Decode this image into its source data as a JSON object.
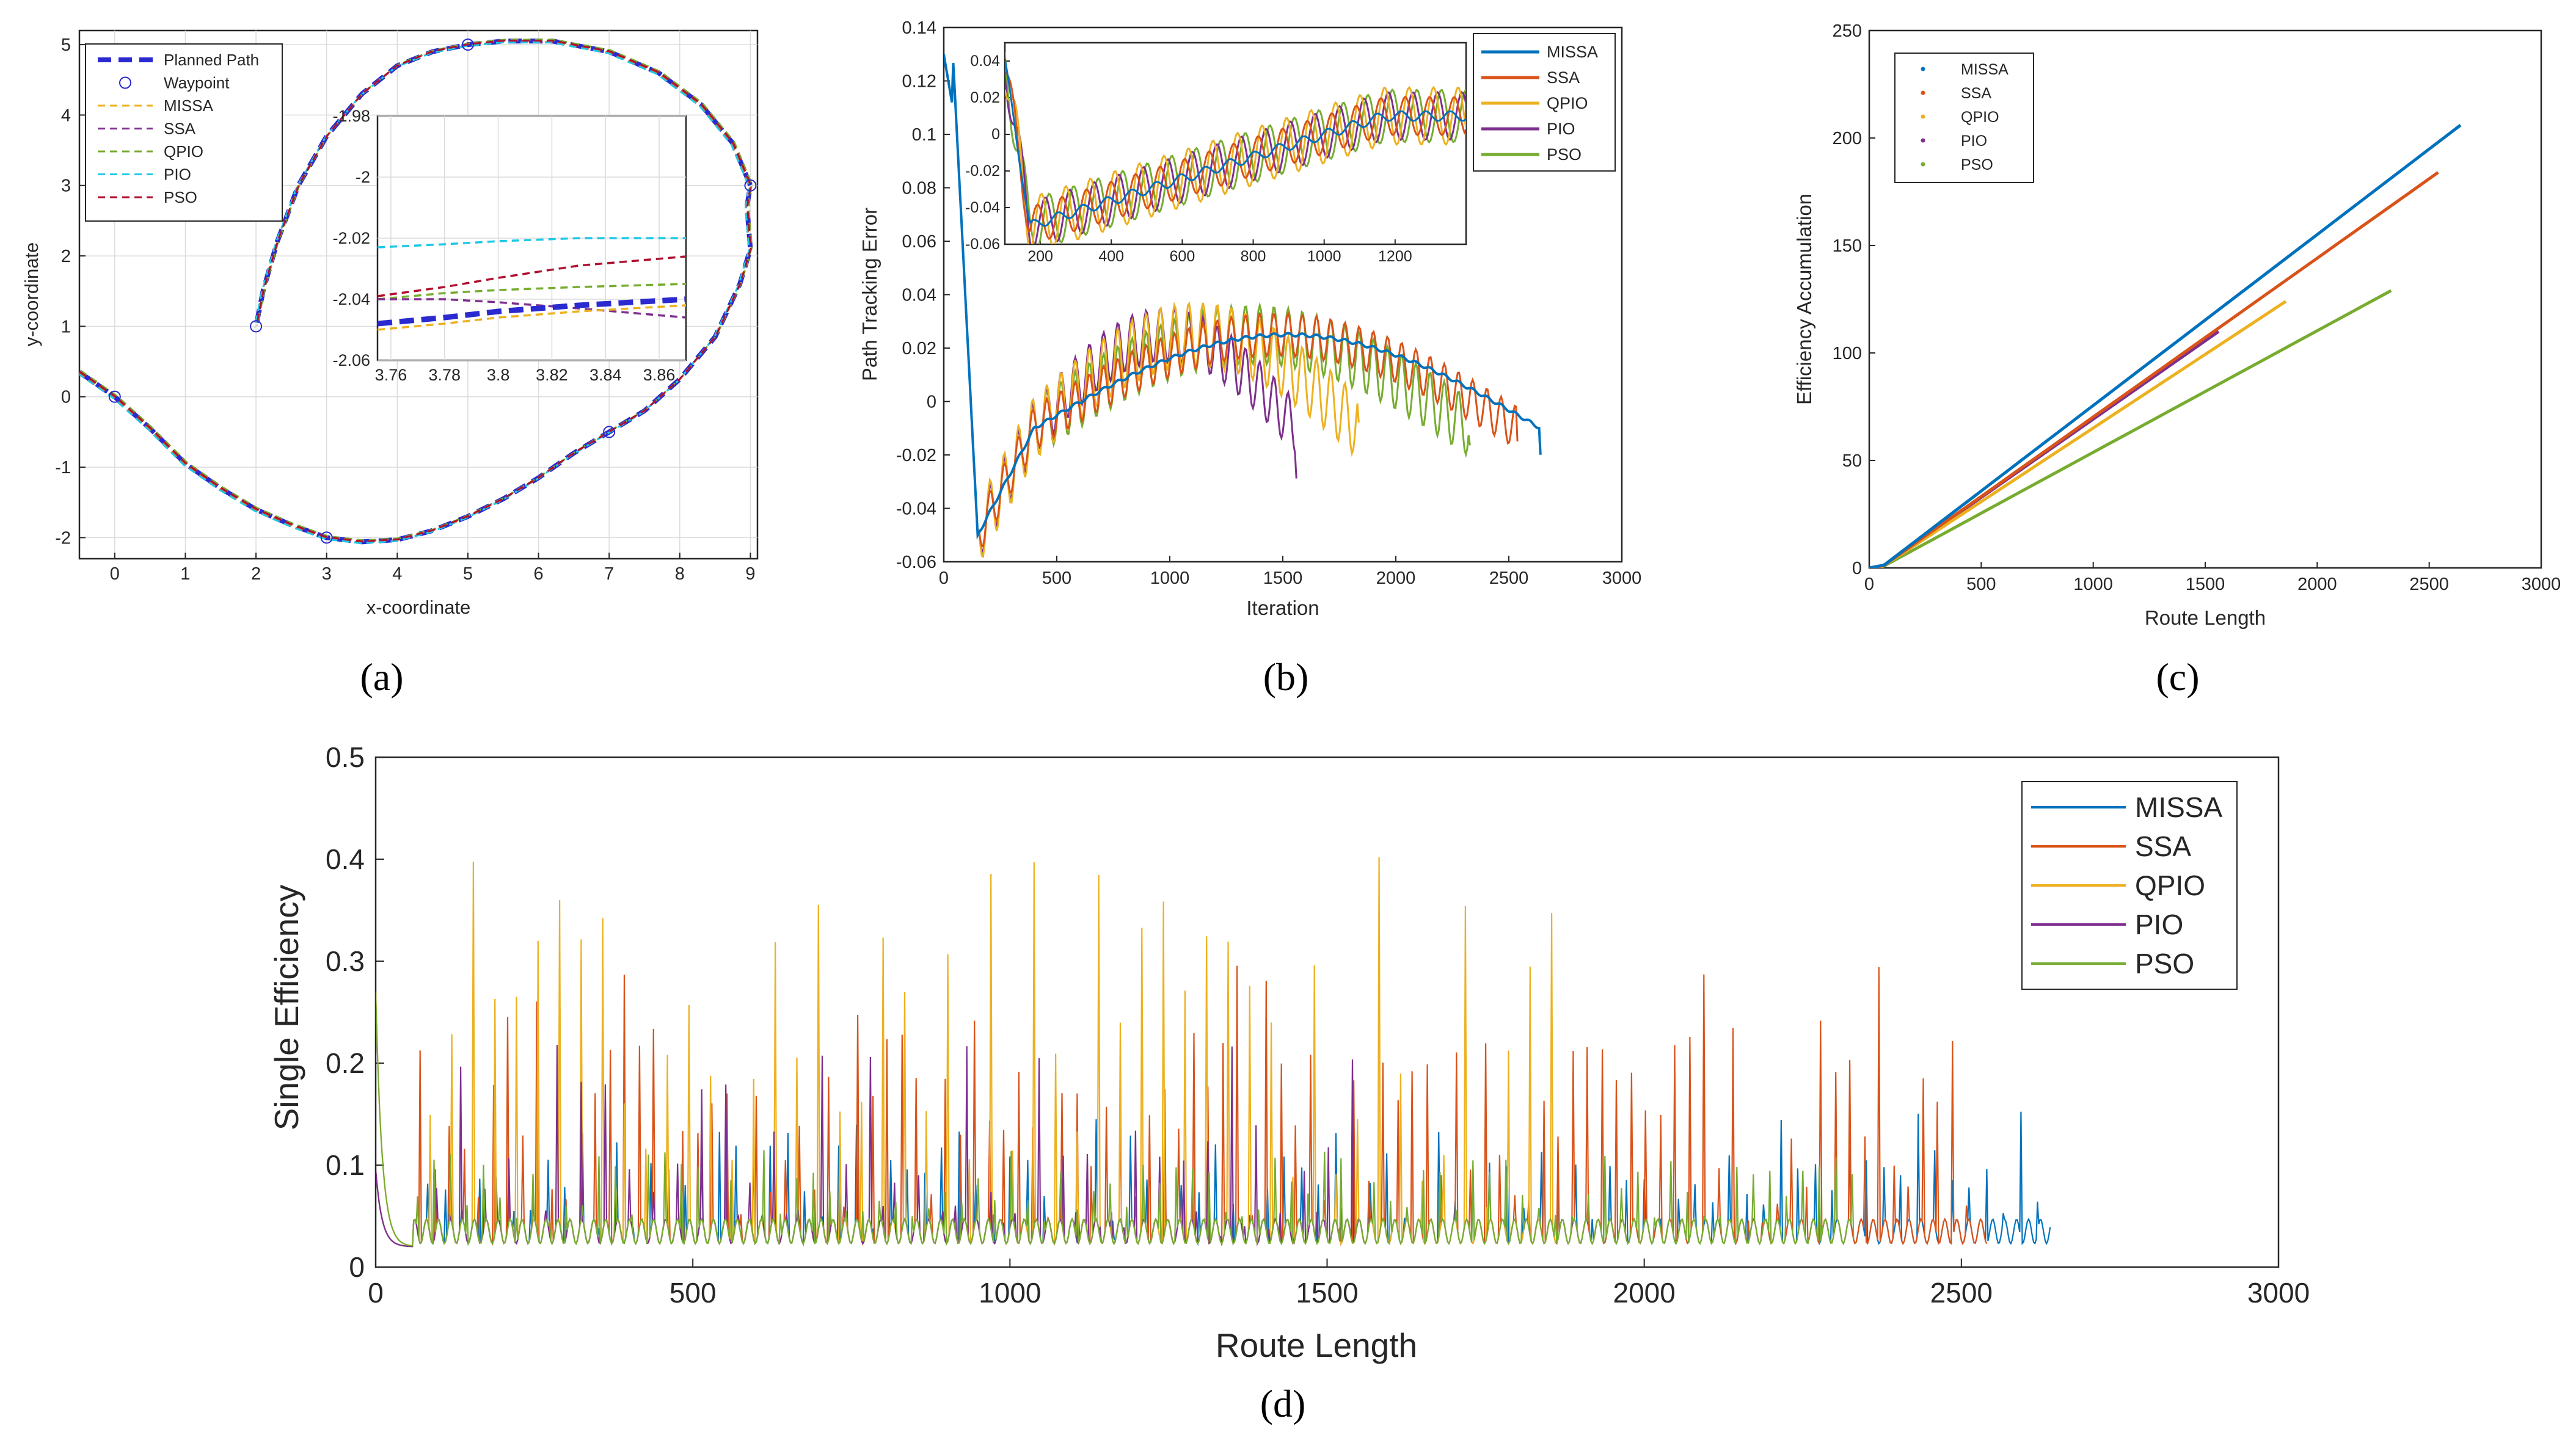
{
  "colors": {
    "MISSA": "#0072BD",
    "SSA": "#D95319",
    "QPIO": "#EDB120",
    "PIO": "#7E2F8E",
    "PSO": "#77AC30",
    "Waypoint": "#2a2ad0",
    "PIO_a": "#1ec8e6",
    "PSO_a": "#b01030"
  },
  "chart_data": [
    {
      "id": "a",
      "type": "line",
      "panel_label": "(a)",
      "xlabel": "x-coordinate",
      "ylabel": "y-coordinate",
      "xlim": [
        -0.5,
        9.1
      ],
      "ylim": [
        -2.3,
        5.2
      ],
      "xticks": [
        "0",
        "1",
        "2",
        "3",
        "4",
        "5",
        "6",
        "7",
        "8",
        "9"
      ],
      "yticks": [
        "-2",
        "-1",
        "0",
        "1",
        "2",
        "3",
        "4",
        "5"
      ],
      "grid": true,
      "legend": [
        "Planned Path",
        "Waypoint",
        "MISSA",
        "SSA",
        "QPIO",
        "PIO",
        "PSO"
      ],
      "legend_position": "top-left",
      "waypoints": [
        [
          0,
          0
        ],
        [
          2,
          1
        ],
        [
          3,
          -2
        ],
        [
          5,
          5
        ],
        [
          7,
          -0.5
        ],
        [
          9,
          3
        ]
      ],
      "inset": {
        "xlim": [
          3.755,
          3.87
        ],
        "ylim": [
          -2.06,
          -1.98
        ],
        "xticks": [
          "3.76",
          "3.78",
          "3.8",
          "3.82",
          "3.84",
          "3.86"
        ],
        "yticks": [
          "-2.06",
          "-2.04",
          "-2.02",
          "-2",
          "-1.98"
        ],
        "series": [
          {
            "name": "PIO",
            "y": [
              -2.023,
              -2.022,
              -2.021,
              -2.02,
              -2.02
            ]
          },
          {
            "name": "PSO",
            "y": [
              -2.039,
              -2.036,
              -2.033,
              -2.029,
              -2.026
            ]
          },
          {
            "name": "QPIO",
            "y": [
              -2.04,
              -2.038,
              -2.037,
              -2.036,
              -2.035
            ]
          },
          {
            "name": "SSA",
            "y": [
              -2.04,
              -2.04,
              -2.041,
              -2.043,
              -2.046
            ]
          },
          {
            "name": "Planned Path",
            "y": [
              -2.048,
              -2.046,
              -2.044,
              -2.042,
              -2.04
            ]
          },
          {
            "name": "MISSA",
            "y": [
              -2.05,
              -2.048,
              -2.046,
              -2.044,
              -2.042
            ]
          }
        ],
        "x": [
          3.755,
          3.78,
          3.8,
          3.83,
          3.87
        ]
      }
    },
    {
      "id": "b",
      "type": "line",
      "panel_label": "(b)",
      "xlabel": "Iteration",
      "ylabel": "Path Tracking Error",
      "xlim": [
        0,
        3000
      ],
      "ylim": [
        -0.06,
        0.14
      ],
      "xticks": [
        "0",
        "500",
        "1000",
        "1500",
        "2000",
        "2500",
        "3000"
      ],
      "yticks": [
        "-0.06",
        "-0.04",
        "-0.02",
        "0",
        "0.02",
        "0.04",
        "0.06",
        "0.08",
        "0.1",
        "0.12",
        "0.14"
      ],
      "legend": [
        "MISSA",
        "SSA",
        "QPIO",
        "PIO",
        "PSO"
      ],
      "legend_position": "top-right",
      "series": [
        {
          "name": "MISSA",
          "end": 2640
        },
        {
          "name": "SSA",
          "end": 2540
        },
        {
          "name": "QPIO",
          "end": 1840
        },
        {
          "name": "PIO",
          "end": 1560
        },
        {
          "name": "PSO",
          "end": 2330
        }
      ],
      "inset": {
        "xlim": [
          100,
          1400
        ],
        "ylim": [
          -0.06,
          0.05
        ],
        "xticks": [
          "200",
          "400",
          "600",
          "800",
          "1000",
          "1200"
        ],
        "yticks": [
          "-0.06",
          "-0.04",
          "-0.02",
          "0",
          "0.02",
          "0.04"
        ]
      }
    },
    {
      "id": "c",
      "type": "scatter",
      "panel_label": "(c)",
      "xlabel": "Route Length",
      "ylabel": "Efficiency Accumulation",
      "xlim": [
        0,
        3000
      ],
      "ylim": [
        0,
        250
      ],
      "xticks": [
        "0",
        "500",
        "1000",
        "1500",
        "2000",
        "2500",
        "3000"
      ],
      "yticks": [
        "0",
        "50",
        "100",
        "150",
        "200",
        "250"
      ],
      "legend": [
        "MISSA",
        "SSA",
        "QPIO",
        "PIO",
        "PSO"
      ],
      "legend_position": "top-left",
      "series": [
        {
          "name": "MISSA",
          "x_end": 2640,
          "y_end": 206
        },
        {
          "name": "SSA",
          "x_end": 2540,
          "y_end": 184
        },
        {
          "name": "QPIO",
          "x_end": 1860,
          "y_end": 124
        },
        {
          "name": "PIO",
          "x_end": 1560,
          "y_end": 110
        },
        {
          "name": "PSO",
          "x_end": 2330,
          "y_end": 129
        }
      ]
    },
    {
      "id": "d",
      "type": "line",
      "panel_label": "(d)",
      "xlabel": "Route Length",
      "ylabel": "Single Efficiency",
      "xlim": [
        0,
        3000
      ],
      "ylim": [
        0,
        0.5
      ],
      "xticks": [
        "0",
        "500",
        "1000",
        "1500",
        "2000",
        "2500",
        "3000"
      ],
      "yticks": [
        "0",
        "0.1",
        "0.2",
        "0.3",
        "0.4",
        "0.5"
      ],
      "legend": [
        "MISSA",
        "SSA",
        "QPIO",
        "PIO",
        "PSO"
      ],
      "legend_position": "top-right",
      "series": [
        {
          "name": "MISSA",
          "end": 2640
        },
        {
          "name": "SSA",
          "end": 2540
        },
        {
          "name": "QPIO",
          "end": 1860
        },
        {
          "name": "PIO",
          "end": 1560
        },
        {
          "name": "PSO",
          "end": 2330
        }
      ]
    }
  ]
}
